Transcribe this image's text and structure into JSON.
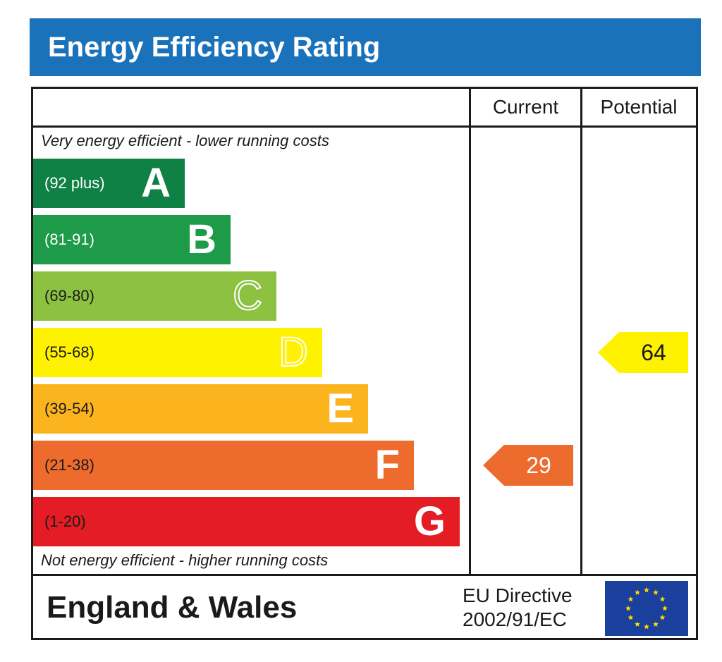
{
  "chart_data": {
    "type": "table",
    "title": "Energy Efficiency Rating",
    "columns": [
      "Current",
      "Potential"
    ],
    "top_caption": "Very energy efficient - lower running costs",
    "bottom_caption": "Not energy efficient - higher running costs",
    "bands": [
      {
        "range": "(92 plus)",
        "letter": "A",
        "color": "#108145",
        "text_color": "#ffffff",
        "outline": false
      },
      {
        "range": "(81-91)",
        "letter": "B",
        "color": "#1d9b48",
        "text_color": "#ffffff",
        "outline": false
      },
      {
        "range": "(69-80)",
        "letter": "C",
        "color": "#8cc142",
        "text_color": "#1a1a1a",
        "outline": true
      },
      {
        "range": "(55-68)",
        "letter": "D",
        "color": "#fff200",
        "text_color": "#1a1a1a",
        "outline": true
      },
      {
        "range": "(39-54)",
        "letter": "E",
        "color": "#fbb41e",
        "text_color": "#1a1a1a",
        "outline": false
      },
      {
        "range": "(21-38)",
        "letter": "F",
        "color": "#ec6b2d",
        "text_color": "#1a1a1a",
        "outline": false
      },
      {
        "range": "(1-20)",
        "letter": "G",
        "color": "#e31d23",
        "text_color": "#1a1a1a",
        "outline": false
      }
    ],
    "ratings": {
      "current": {
        "value": "29",
        "band": "F",
        "color": "#ec6b2d",
        "text_color": "#ffffff"
      },
      "potential": {
        "value": "64",
        "band": "D",
        "color": "#fff200",
        "text_color": "#1a1a1a"
      }
    }
  },
  "footer": {
    "country": "England & Wales",
    "directive_line1": "EU Directive",
    "directive_line2": "2002/91/EC",
    "flag_icon": "eu-flag-icon",
    "flag_color": "#1a3f9c",
    "star_color": "#ffdd00"
  }
}
